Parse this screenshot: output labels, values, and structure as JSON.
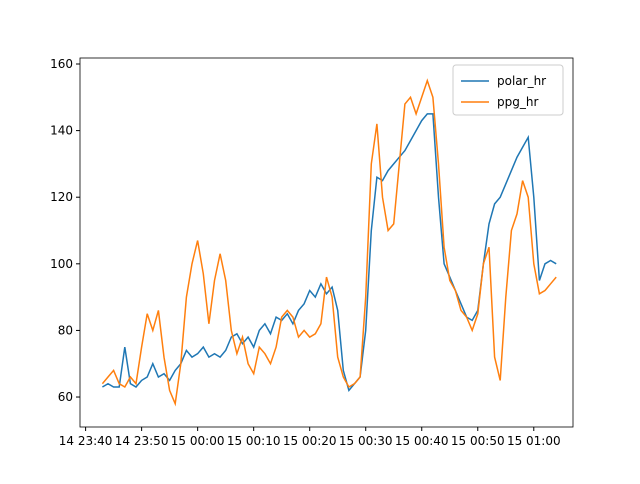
{
  "chart_data": {
    "type": "line",
    "x": [
      "14 23:43",
      "14 23:44",
      "14 23:45",
      "14 23:46",
      "14 23:47",
      "14 23:48",
      "14 23:49",
      "14 23:50",
      "14 23:51",
      "14 23:52",
      "14 23:53",
      "14 23:54",
      "14 23:55",
      "14 23:56",
      "14 23:57",
      "14 23:58",
      "14 23:59",
      "15 00:00",
      "15 00:01",
      "15 00:02",
      "15 00:03",
      "15 00:04",
      "15 00:05",
      "15 00:06",
      "15 00:07",
      "15 00:08",
      "15 00:09",
      "15 00:10",
      "15 00:11",
      "15 00:12",
      "15 00:13",
      "15 00:14",
      "15 00:15",
      "15 00:16",
      "15 00:17",
      "15 00:18",
      "15 00:19",
      "15 00:20",
      "15 00:21",
      "15 00:22",
      "15 00:23",
      "15 00:24",
      "15 00:25",
      "15 00:26",
      "15 00:27",
      "15 00:28",
      "15 00:29",
      "15 00:30",
      "15 00:31",
      "15 00:32",
      "15 00:33",
      "15 00:34",
      "15 00:35",
      "15 00:36",
      "15 00:37",
      "15 00:38",
      "15 00:39",
      "15 00:40",
      "15 00:41",
      "15 00:42",
      "15 00:43",
      "15 00:44",
      "15 00:45",
      "15 00:46",
      "15 00:47",
      "15 00:48",
      "15 00:49",
      "15 00:50",
      "15 00:51",
      "15 00:52",
      "15 00:53",
      "15 00:54",
      "15 00:55",
      "15 00:56",
      "15 00:57",
      "15 00:58",
      "15 00:59",
      "15 01:00",
      "15 01:01",
      "15 01:02",
      "15 01:03",
      "15 01:04"
    ],
    "series": [
      {
        "name": "polar_hr",
        "color": "#1f77b4",
        "values": [
          63,
          64,
          63,
          63,
          75,
          64,
          63,
          65,
          66,
          70,
          66,
          67,
          65,
          68,
          70,
          74,
          72,
          73,
          75,
          72,
          73,
          72,
          74,
          78,
          79,
          76,
          78,
          75,
          80,
          82,
          79,
          84,
          83,
          85,
          82,
          86,
          88,
          92,
          90,
          94,
          91,
          93,
          86,
          68,
          62,
          64,
          66,
          80,
          110,
          126,
          125,
          128,
          130,
          132,
          134,
          137,
          140,
          143,
          145,
          145,
          120,
          100,
          96,
          92,
          88,
          84,
          83,
          86,
          100,
          112,
          118,
          120,
          124,
          128,
          132,
          135,
          138,
          120,
          95,
          100,
          101,
          100
        ]
      },
      {
        "name": "ppg_hr",
        "color": "#ff7f0e",
        "values": [
          64,
          66,
          68,
          64,
          63,
          66,
          64,
          75,
          85,
          80,
          86,
          72,
          62,
          58,
          70,
          90,
          100,
          107,
          97,
          82,
          95,
          103,
          95,
          80,
          73,
          78,
          70,
          67,
          75,
          73,
          70,
          75,
          84,
          86,
          84,
          78,
          80,
          78,
          79,
          82,
          96,
          90,
          72,
          66,
          63,
          64,
          66,
          90,
          130,
          142,
          120,
          110,
          112,
          130,
          148,
          150,
          145,
          150,
          155,
          150,
          130,
          105,
          95,
          92,
          86,
          84,
          80,
          85,
          100,
          105,
          72,
          65,
          90,
          110,
          115,
          125,
          120,
          100,
          91,
          92,
          94,
          96
        ]
      }
    ],
    "xlim": [
      "14 23:39",
      "15 01:07"
    ],
    "xticks": [
      "14 23:40",
      "14 23:50",
      "15 00:00",
      "15 00:10",
      "15 00:20",
      "15 00:30",
      "15 00:40",
      "15 00:50",
      "15 01:00"
    ],
    "ylim": [
      51,
      161.8
    ],
    "yticks": [
      60,
      80,
      100,
      120,
      140,
      160
    ],
    "legend": "upper right"
  }
}
